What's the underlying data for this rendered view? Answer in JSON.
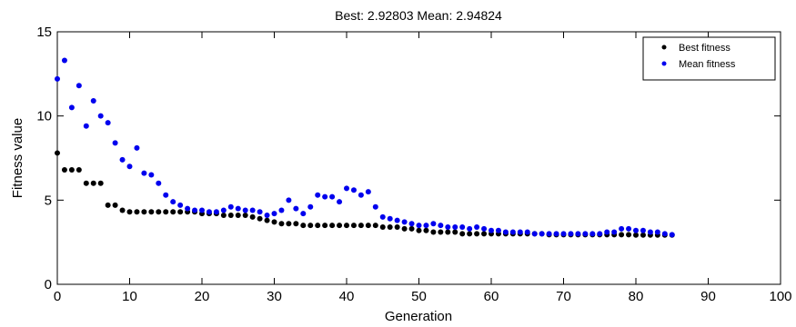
{
  "chart_data": {
    "type": "scatter",
    "title": "Best: 2.92803 Mean: 2.94824",
    "xlabel": "Generation",
    "ylabel": "Fitness value",
    "xlim": [
      0,
      100
    ],
    "ylim": [
      0,
      15
    ],
    "xticks": [
      0,
      10,
      20,
      30,
      40,
      50,
      60,
      70,
      80,
      90,
      100
    ],
    "yticks": [
      0,
      5,
      10,
      15
    ],
    "grid": false,
    "legend_position": "top-right",
    "series": [
      {
        "name": "Best fitness",
        "color": "#000000",
        "x": [
          0,
          1,
          2,
          3,
          4,
          5,
          6,
          7,
          8,
          9,
          10,
          11,
          12,
          13,
          14,
          15,
          16,
          17,
          18,
          19,
          20,
          21,
          22,
          23,
          24,
          25,
          26,
          27,
          28,
          29,
          30,
          31,
          32,
          33,
          34,
          35,
          36,
          37,
          38,
          39,
          40,
          41,
          42,
          43,
          44,
          45,
          46,
          47,
          48,
          49,
          50,
          51,
          52,
          53,
          54,
          55,
          56,
          57,
          58,
          59,
          60,
          61,
          62,
          63,
          64,
          65,
          66,
          67,
          68,
          69,
          70,
          71,
          72,
          73,
          74,
          75,
          76,
          77,
          78,
          79,
          80,
          81,
          82,
          83,
          84,
          85
        ],
        "y": [
          7.8,
          6.8,
          6.8,
          6.8,
          6.0,
          6.0,
          6.0,
          4.7,
          4.7,
          4.4,
          4.3,
          4.3,
          4.3,
          4.3,
          4.3,
          4.3,
          4.3,
          4.3,
          4.3,
          4.3,
          4.2,
          4.2,
          4.2,
          4.1,
          4.1,
          4.1,
          4.1,
          4.0,
          3.9,
          3.8,
          3.7,
          3.6,
          3.6,
          3.6,
          3.5,
          3.5,
          3.5,
          3.5,
          3.5,
          3.5,
          3.5,
          3.5,
          3.5,
          3.5,
          3.5,
          3.4,
          3.4,
          3.4,
          3.3,
          3.3,
          3.2,
          3.2,
          3.1,
          3.1,
          3.1,
          3.1,
          3.0,
          3.0,
          3.0,
          3.0,
          3.0,
          3.0,
          3.0,
          3.0,
          3.0,
          3.0,
          3.0,
          3.0,
          2.95,
          2.95,
          2.95,
          2.95,
          2.95,
          2.95,
          2.95,
          2.95,
          2.95,
          2.95,
          2.95,
          2.95,
          2.93,
          2.93,
          2.93,
          2.93,
          2.93,
          2.93
        ]
      },
      {
        "name": "Mean fitness",
        "color": "#0000ee",
        "x": [
          0,
          1,
          2,
          3,
          4,
          5,
          6,
          7,
          8,
          9,
          10,
          11,
          12,
          13,
          14,
          15,
          16,
          17,
          18,
          19,
          20,
          21,
          22,
          23,
          24,
          25,
          26,
          27,
          28,
          29,
          30,
          31,
          32,
          33,
          34,
          35,
          36,
          37,
          38,
          39,
          40,
          41,
          42,
          43,
          44,
          45,
          46,
          47,
          48,
          49,
          50,
          51,
          52,
          53,
          54,
          55,
          56,
          57,
          58,
          59,
          60,
          61,
          62,
          63,
          64,
          65,
          66,
          67,
          68,
          69,
          70,
          71,
          72,
          73,
          74,
          75,
          76,
          77,
          78,
          79,
          80,
          81,
          82,
          83,
          84,
          85
        ],
        "y": [
          12.2,
          13.3,
          10.5,
          11.8,
          9.4,
          10.9,
          10.0,
          9.6,
          8.4,
          7.4,
          7.0,
          8.1,
          6.6,
          6.5,
          6.0,
          5.3,
          4.9,
          4.7,
          4.5,
          4.4,
          4.4,
          4.3,
          4.3,
          4.4,
          4.6,
          4.5,
          4.4,
          4.4,
          4.3,
          4.1,
          4.2,
          4.4,
          5.0,
          4.5,
          4.2,
          4.6,
          5.3,
          5.2,
          5.2,
          4.9,
          5.7,
          5.6,
          5.3,
          5.5,
          4.6,
          4.0,
          3.9,
          3.8,
          3.7,
          3.6,
          3.5,
          3.5,
          3.6,
          3.5,
          3.4,
          3.4,
          3.4,
          3.3,
          3.4,
          3.3,
          3.2,
          3.2,
          3.1,
          3.1,
          3.1,
          3.1,
          3.0,
          3.0,
          3.0,
          3.0,
          3.0,
          3.0,
          3.0,
          3.0,
          3.0,
          3.0,
          3.1,
          3.1,
          3.3,
          3.3,
          3.2,
          3.2,
          3.1,
          3.1,
          3.0,
          2.95
        ]
      }
    ]
  }
}
